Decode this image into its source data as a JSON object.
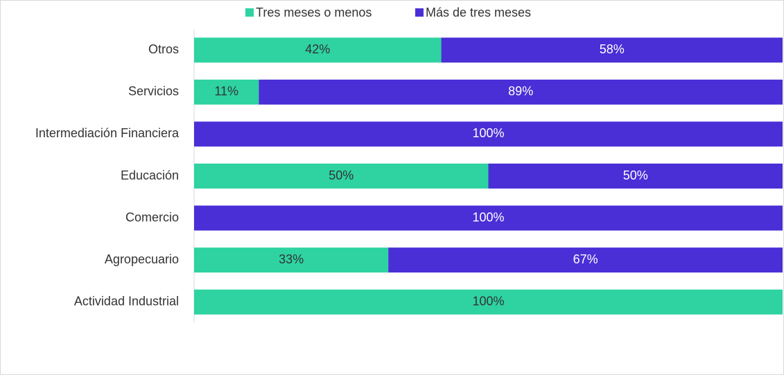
{
  "chart_data": {
    "type": "stacked-bar-horizontal",
    "categories": [
      "Otros",
      "Servicios",
      "Intermediación Financiera",
      "Educación",
      "Comercio",
      "Agropecuario",
      "Actividad Industrial"
    ],
    "series": [
      {
        "name": "Tres meses o menos",
        "color": "#2ed3a1",
        "values": [
          42,
          11,
          0,
          50,
          0,
          33,
          100
        ],
        "value_labels": [
          "42%",
          "11%",
          null,
          "50%",
          null,
          "33%",
          "100%"
        ]
      },
      {
        "name": "Más de tres meses",
        "color": "#4a2ed6",
        "values": [
          58,
          89,
          100,
          50,
          100,
          67,
          0
        ],
        "value_labels": [
          "58%",
          "89%",
          "100%",
          "50%",
          "100%",
          "67%",
          null
        ]
      }
    ],
    "xlim": [
      0,
      100
    ],
    "legend": "top"
  }
}
